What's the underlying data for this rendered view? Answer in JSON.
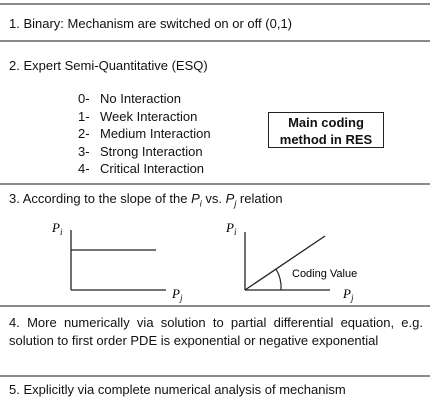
{
  "sections": [
    {
      "text": "1. Binary: Mechanism are switched on or off (0,1)"
    },
    {
      "text": "2. Expert Semi-Quantitative (ESQ)",
      "items": [
        {
          "code": "0-",
          "label": "No Interaction"
        },
        {
          "code": "1-",
          "label": "Week Interaction"
        },
        {
          "code": "2-",
          "label": "Medium Interaction"
        },
        {
          "code": "3-",
          "label": "Strong Interaction"
        },
        {
          "code": "4-",
          "label": "Critical Interaction"
        }
      ],
      "note": [
        "Main coding",
        "method in RES"
      ]
    },
    {
      "text_before": "3. According to the slope of the ",
      "var1": "P",
      "sub1": "i",
      "text_middle": " vs. ",
      "var2": "P",
      "sub2": "j",
      "text_after": " relation",
      "graph_left": {
        "y_label": "P",
        "y_sub": "i",
        "x_label": "P",
        "x_sub": "j"
      },
      "graph_right": {
        "y_label": "P",
        "y_sub": "i",
        "x_label": "P",
        "x_sub": "j",
        "annotation": "Coding Value"
      }
    },
    {
      "text": "4. More numerically via solution to partial differential equation, e.g. solution to first order PDE is exponential or negative exponential"
    },
    {
      "text": "5. Explicitly via complete numerical analysis of mechanism"
    }
  ]
}
